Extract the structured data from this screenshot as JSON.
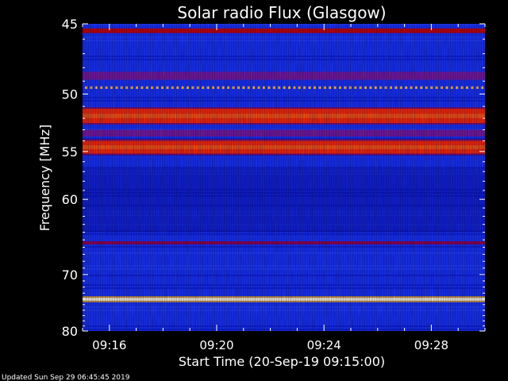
{
  "chart_data": {
    "type": "heatmap",
    "title": "Solar radio Flux (Glasgow)",
    "xlabel": "Start Time (20-Sep-19 09:15:00)",
    "ylabel": "Frequency [MHz]",
    "footer": "Updated Sun Sep 29 06:45:45 2019",
    "x_ticks": [
      "09:16",
      "09:20",
      "09:24",
      "09:28"
    ],
    "x_tick_minutes": [
      1,
      5,
      9,
      13
    ],
    "xlim_minutes": [
      0,
      15
    ],
    "y_ticks": [
      45,
      50,
      55,
      60,
      70,
      80
    ],
    "ylim_mhz": [
      45,
      80
    ],
    "y_scale": "reciprocal (wavelength-like spacing; lower frequencies at top)",
    "colormap": [
      "#000060",
      "#0a14c8",
      "#1e3cff",
      "#78148c",
      "#c80000",
      "#ff3c00",
      "#ffb400",
      "#ffffe6"
    ],
    "background_level": "blue",
    "bands": [
      {
        "f_low": 45.3,
        "f_high": 45.6,
        "level": "red"
      },
      {
        "f_low": 48.3,
        "f_high": 48.9,
        "level": "purple"
      },
      {
        "f_low": 49.4,
        "f_high": 49.6,
        "level": "dashed-yellow"
      },
      {
        "f_low": 51.2,
        "f_high": 52.4,
        "level": "bright-red"
      },
      {
        "f_low": 53.0,
        "f_high": 53.6,
        "level": "purple"
      },
      {
        "f_low": 54.0,
        "f_high": 55.2,
        "level": "bright-red"
      },
      {
        "f_low": 65.2,
        "f_high": 65.6,
        "level": "dark-red"
      },
      {
        "f_low": 73.8,
        "f_high": 74.3,
        "level": "yellow-white"
      }
    ]
  }
}
